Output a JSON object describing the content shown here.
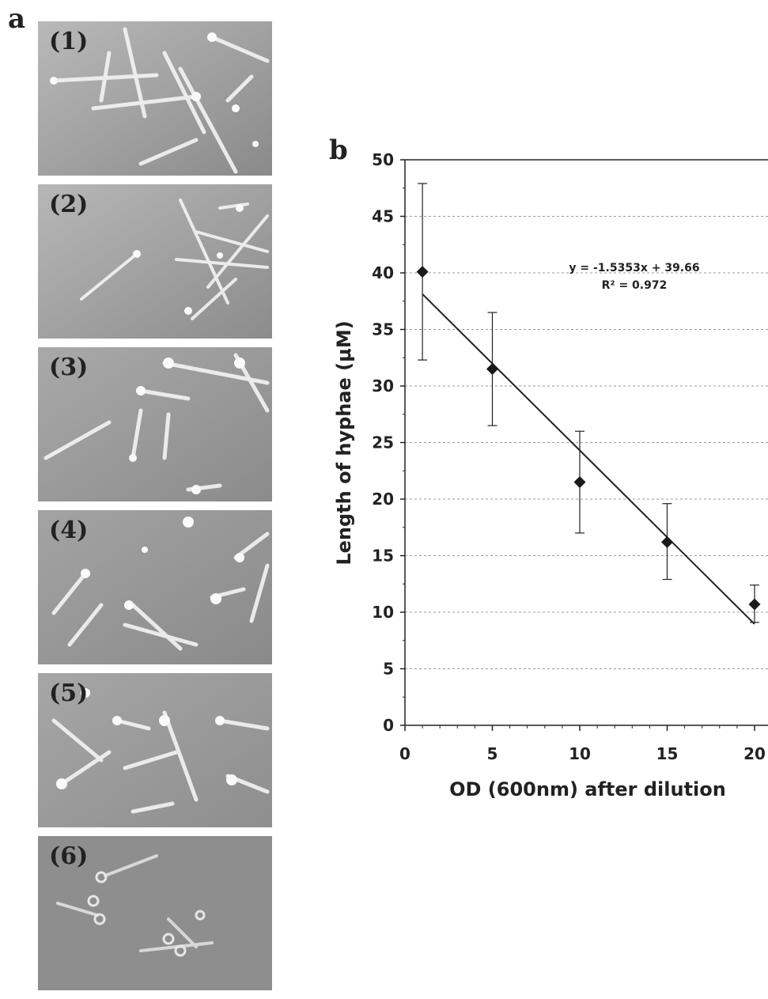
{
  "panel_a": {
    "letter": "a",
    "photos": [
      {
        "label": "(1)"
      },
      {
        "label": "(2)"
      },
      {
        "label": "(3)"
      },
      {
        "label": "(4)"
      },
      {
        "label": "(5)"
      },
      {
        "label": "(6)"
      }
    ]
  },
  "chart_data": {
    "panel_letter": "b",
    "type": "scatter",
    "xlabel": "OD (600nm) after dilution",
    "ylabel": "Length of hyphae (μM)",
    "xlim": [
      0,
      20
    ],
    "ylim": [
      0,
      50
    ],
    "x_ticks": [
      0,
      5,
      10,
      15,
      20
    ],
    "y_ticks": [
      0,
      5,
      10,
      15,
      20,
      25,
      30,
      35,
      40,
      45,
      50
    ],
    "grid": "horizontal dashed",
    "points": [
      {
        "x": 1,
        "y": 40.1,
        "err_low": 32.3,
        "err_high": 47.9
      },
      {
        "x": 5,
        "y": 31.5,
        "err_low": 26.5,
        "err_high": 36.5
      },
      {
        "x": 10,
        "y": 21.5,
        "err_low": 17,
        "err_high": 26
      },
      {
        "x": 15,
        "y": 16.2,
        "err_low": 12.9,
        "err_high": 19.6
      },
      {
        "x": 20,
        "y": 10.7,
        "err_low": 9.1,
        "err_high": 12.4
      }
    ],
    "trendline": {
      "slope": -1.5353,
      "intercept": 39.66,
      "x_range": [
        1,
        20
      ]
    },
    "equation": "y = -1.5353x + 39.66",
    "r2_text": "R² = 0.972"
  }
}
